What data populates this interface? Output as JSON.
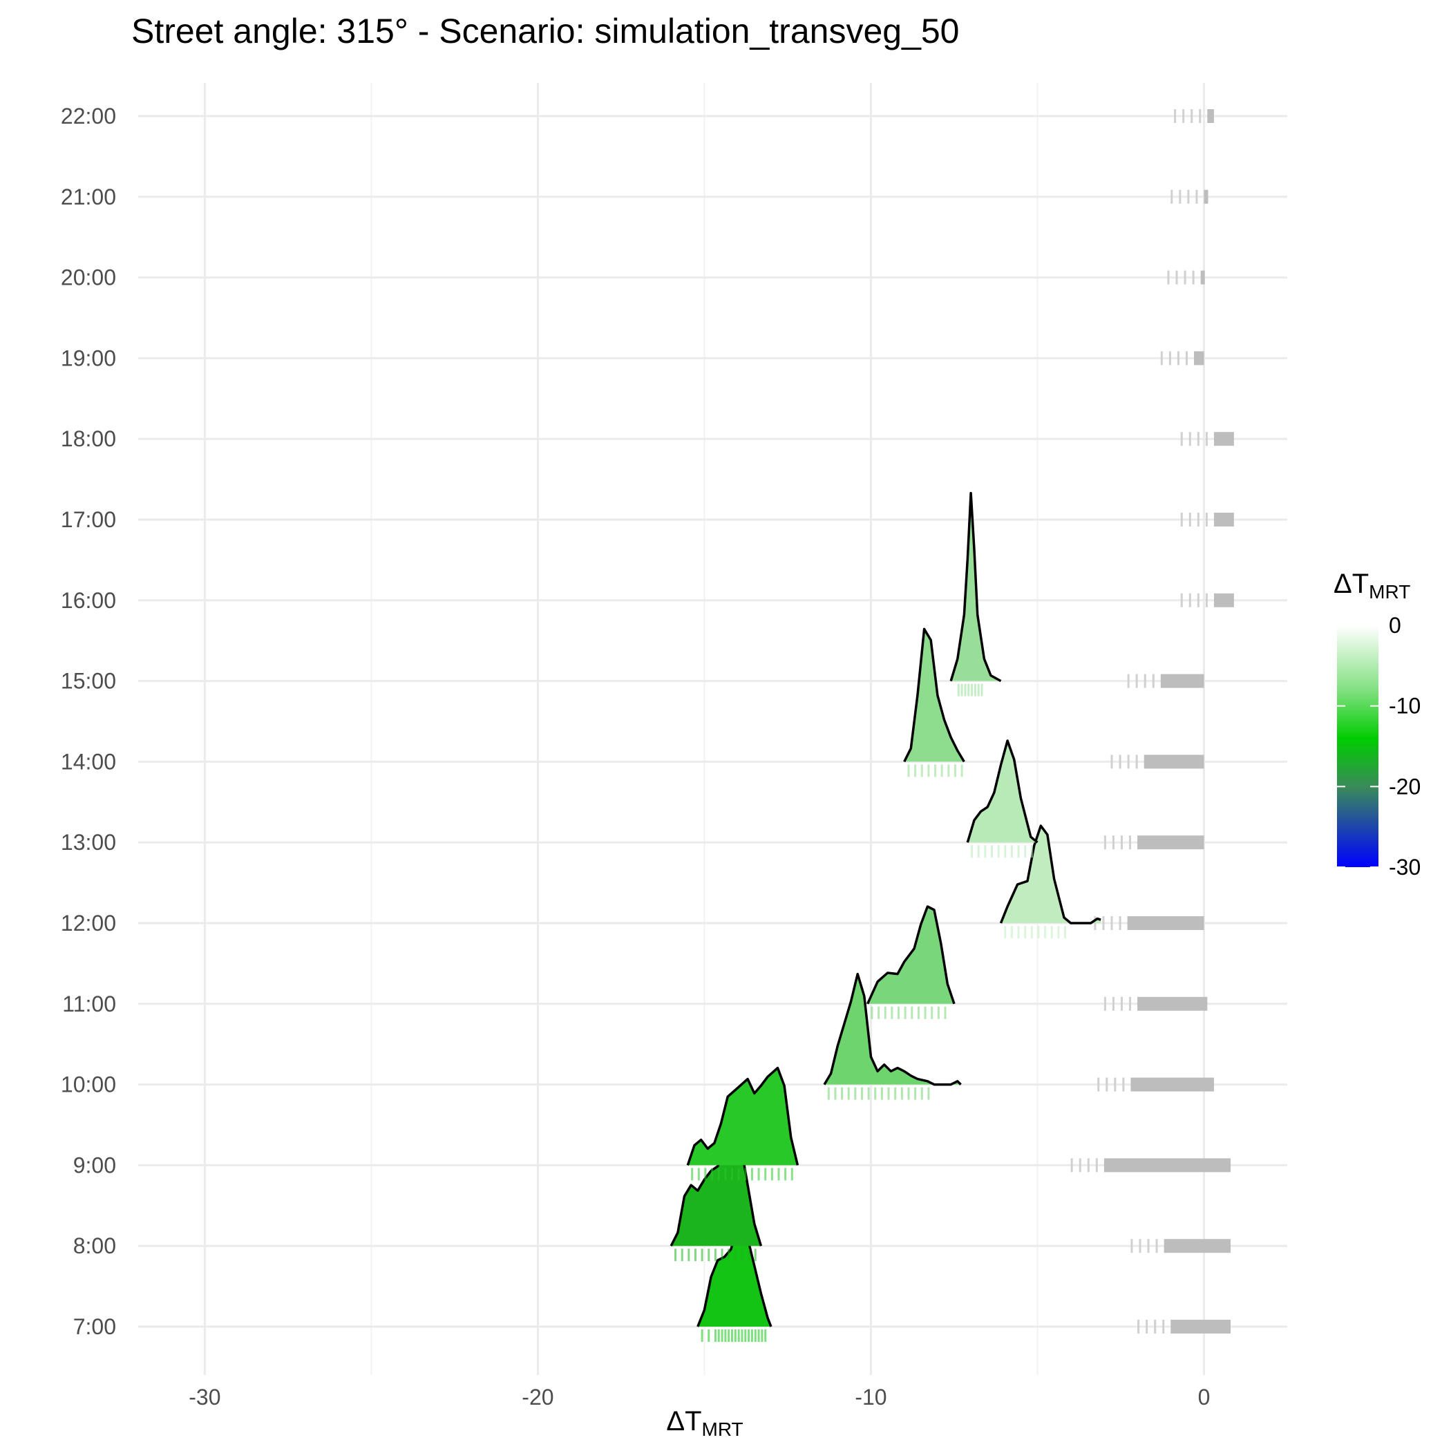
{
  "chart_data": {
    "type": "ridgeline",
    "title": "Street angle: 315° - Scenario: simulation_transveg_50",
    "xlabel": {
      "base": "ΔT",
      "sub": "MRT"
    },
    "ylabel": "",
    "xlim": [
      -32,
      2.5
    ],
    "x_ticks": [
      -30,
      -20,
      -10,
      0
    ],
    "x_tick_labels": [
      "-30",
      "-20",
      "-10",
      "0"
    ],
    "y_categories": [
      "7:00",
      "8:00",
      "9:00",
      "10:00",
      "11:00",
      "12:00",
      "13:00",
      "14:00",
      "15:00",
      "16:00",
      "17:00",
      "18:00",
      "19:00",
      "20:00",
      "21:00",
      "22:00"
    ],
    "grid": true,
    "legend": {
      "title": {
        "base": "ΔT",
        "sub": "MRT"
      },
      "position": "right",
      "breaks": [
        0,
        -10,
        -20,
        -30
      ],
      "labels": [
        "0",
        "-10",
        "-20",
        "-30"
      ],
      "colors": [
        {
          "value": 0,
          "color": "#ffffff"
        },
        {
          "value": -8,
          "color": "#80e080"
        },
        {
          "value": -14,
          "color": "#00cc00"
        },
        {
          "value": -20,
          "color": "#3a8a5a"
        },
        {
          "value": -30,
          "color": "#0000ff"
        }
      ]
    },
    "series": [
      {
        "name": "7:00",
        "hour": "7:00",
        "fill": "#14c414",
        "density": [
          [
            -15.2,
            0
          ],
          [
            -15.0,
            0.15
          ],
          [
            -14.8,
            0.45
          ],
          [
            -14.6,
            0.6
          ],
          [
            -14.4,
            0.63
          ],
          [
            -14.2,
            0.7
          ],
          [
            -14.0,
            0.92
          ],
          [
            -13.9,
            1.0
          ],
          [
            -13.7,
            0.8
          ],
          [
            -13.5,
            0.55
          ],
          [
            -13.3,
            0.3
          ],
          [
            -13.1,
            0.08
          ],
          [
            -13.0,
            0
          ]
        ],
        "rug": [
          -15.1,
          -14.9,
          -14.7,
          -14.6,
          -14.5,
          -14.4,
          -14.3,
          -14.2,
          -14.1,
          -14.0,
          -13.9,
          -13.8,
          -13.7,
          -13.6,
          -13.5,
          -13.4,
          -13.3,
          -13.2
        ],
        "gray_rug": [
          -1.0,
          0.8
        ]
      },
      {
        "name": "8:00",
        "hour": "8:00",
        "fill": "#1cb41c",
        "density": [
          [
            -16.0,
            0
          ],
          [
            -15.8,
            0.12
          ],
          [
            -15.6,
            0.45
          ],
          [
            -15.4,
            0.55
          ],
          [
            -15.2,
            0.5
          ],
          [
            -15.0,
            0.6
          ],
          [
            -14.8,
            0.68
          ],
          [
            -14.6,
            0.72
          ],
          [
            -14.4,
            0.85
          ],
          [
            -14.2,
            0.9
          ],
          [
            -14.0,
            1.0
          ],
          [
            -13.9,
            0.9
          ],
          [
            -13.7,
            0.55
          ],
          [
            -13.5,
            0.2
          ],
          [
            -13.3,
            0
          ]
        ],
        "rug": [
          -15.9,
          -15.7,
          -15.5,
          -15.3,
          -15.1,
          -14.9,
          -14.7,
          -14.5,
          -14.3,
          -14.1,
          -13.9,
          -13.7,
          -13.5
        ],
        "gray_rug": [
          -1.2,
          0.8
        ]
      },
      {
        "name": "9:00",
        "hour": "9:00",
        "fill": "#28c828",
        "density": [
          [
            -15.5,
            0
          ],
          [
            -15.3,
            0.18
          ],
          [
            -15.1,
            0.23
          ],
          [
            -14.9,
            0.15
          ],
          [
            -14.7,
            0.2
          ],
          [
            -14.5,
            0.38
          ],
          [
            -14.3,
            0.62
          ],
          [
            -14.0,
            0.7
          ],
          [
            -13.7,
            0.78
          ],
          [
            -13.5,
            0.65
          ],
          [
            -13.3,
            0.72
          ],
          [
            -13.1,
            0.8
          ],
          [
            -12.8,
            0.88
          ],
          [
            -12.6,
            0.72
          ],
          [
            -12.4,
            0.25
          ],
          [
            -12.2,
            0
          ]
        ],
        "rug": [
          -15.4,
          -15.2,
          -15.0,
          -14.8,
          -14.6,
          -14.4,
          -14.2,
          -14.0,
          -13.8,
          -13.6,
          -13.4,
          -13.2,
          -13.0,
          -12.8,
          -12.6,
          -12.4
        ],
        "gray_rug": [
          -3.0,
          0.8
        ]
      },
      {
        "name": "10:00",
        "hour": "10:00",
        "fill": "#6ed46e",
        "density": [
          [
            -11.4,
            0
          ],
          [
            -11.2,
            0.1
          ],
          [
            -11.0,
            0.35
          ],
          [
            -10.8,
            0.55
          ],
          [
            -10.6,
            0.75
          ],
          [
            -10.4,
            1.0
          ],
          [
            -10.2,
            0.8
          ],
          [
            -10.0,
            0.25
          ],
          [
            -9.8,
            0.12
          ],
          [
            -9.6,
            0.18
          ],
          [
            -9.4,
            0.12
          ],
          [
            -9.2,
            0.15
          ],
          [
            -9.0,
            0.12
          ],
          [
            -8.8,
            0.08
          ],
          [
            -8.6,
            0.05
          ],
          [
            -8.3,
            0.03
          ],
          [
            -8.1,
            0
          ],
          [
            -7.6,
            0.0
          ],
          [
            -7.4,
            0.03
          ],
          [
            -7.3,
            0
          ]
        ],
        "rug": [
          -11.3,
          -11.1,
          -10.9,
          -10.7,
          -10.5,
          -10.3,
          -10.1,
          -9.9,
          -9.7,
          -9.5,
          -9.3,
          -9.1,
          -8.9,
          -8.7,
          -8.5,
          -8.3
        ],
        "gray_rug": [
          -2.2,
          0.3
        ]
      },
      {
        "name": "11:00",
        "hour": "11:00",
        "fill": "#7ad67a",
        "density": [
          [
            -10.1,
            0
          ],
          [
            -9.8,
            0.2
          ],
          [
            -9.5,
            0.28
          ],
          [
            -9.2,
            0.27
          ],
          [
            -9.0,
            0.38
          ],
          [
            -8.7,
            0.5
          ],
          [
            -8.5,
            0.72
          ],
          [
            -8.3,
            0.88
          ],
          [
            -8.1,
            0.85
          ],
          [
            -7.9,
            0.55
          ],
          [
            -7.7,
            0.18
          ],
          [
            -7.5,
            0
          ]
        ],
        "rug": [
          -10.0,
          -9.8,
          -9.6,
          -9.4,
          -9.2,
          -9.0,
          -8.8,
          -8.6,
          -8.4,
          -8.2,
          -8.0,
          -7.8
        ],
        "gray_rug": [
          -2.0,
          0.1
        ]
      },
      {
        "name": "12:00",
        "hour": "12:00",
        "fill": "#c0ecc0",
        "density": [
          [
            -6.1,
            0
          ],
          [
            -5.9,
            0.15
          ],
          [
            -5.6,
            0.35
          ],
          [
            -5.3,
            0.38
          ],
          [
            -5.1,
            0.7
          ],
          [
            -4.9,
            0.88
          ],
          [
            -4.7,
            0.8
          ],
          [
            -4.5,
            0.4
          ],
          [
            -4.2,
            0.05
          ],
          [
            -4.0,
            0
          ],
          [
            -3.4,
            0.0
          ],
          [
            -3.2,
            0.04
          ],
          [
            -3.1,
            0.03
          ]
        ],
        "rug": [
          -6.0,
          -5.8,
          -5.6,
          -5.4,
          -5.2,
          -5.0,
          -4.8,
          -4.6,
          -4.4,
          -4.2
        ],
        "gray_rug": [
          -2.3,
          0.0
        ]
      },
      {
        "name": "13:00",
        "hour": "13:00",
        "fill": "#b8eab8",
        "density": [
          [
            -7.1,
            0
          ],
          [
            -6.9,
            0.2
          ],
          [
            -6.7,
            0.28
          ],
          [
            -6.5,
            0.32
          ],
          [
            -6.3,
            0.45
          ],
          [
            -6.1,
            0.7
          ],
          [
            -5.9,
            0.92
          ],
          [
            -5.7,
            0.75
          ],
          [
            -5.5,
            0.4
          ],
          [
            -5.2,
            0.05
          ],
          [
            -5.0,
            0
          ]
        ],
        "rug": [
          -7.0,
          -6.8,
          -6.6,
          -6.4,
          -6.2,
          -6.0,
          -5.8,
          -5.6,
          -5.4,
          -5.2
        ],
        "gray_rug": [
          -2.0,
          0.0
        ]
      },
      {
        "name": "14:00",
        "hour": "14:00",
        "fill": "#8edc8e",
        "density": [
          [
            -9.0,
            0
          ],
          [
            -8.8,
            0.12
          ],
          [
            -8.6,
            0.6
          ],
          [
            -8.4,
            1.2
          ],
          [
            -8.2,
            1.1
          ],
          [
            -8.0,
            0.6
          ],
          [
            -7.8,
            0.38
          ],
          [
            -7.6,
            0.22
          ],
          [
            -7.4,
            0.1
          ],
          [
            -7.2,
            0
          ]
        ],
        "rug": [
          -8.9,
          -8.7,
          -8.5,
          -8.3,
          -8.1,
          -7.9,
          -7.7,
          -7.5,
          -7.3
        ],
        "gray_rug": [
          -1.8,
          0.0
        ]
      },
      {
        "name": "15:00",
        "hour": "15:00",
        "fill": "#98de98",
        "density": [
          [
            -7.6,
            0
          ],
          [
            -7.4,
            0.2
          ],
          [
            -7.2,
            0.6
          ],
          [
            -7.1,
            1.1
          ],
          [
            -7.0,
            1.7
          ],
          [
            -6.9,
            1.2
          ],
          [
            -6.8,
            0.6
          ],
          [
            -6.6,
            0.2
          ],
          [
            -6.4,
            0.05
          ],
          [
            -6.1,
            0
          ]
        ],
        "rug": [
          -7.4,
          -7.3,
          -7.2,
          -7.1,
          -7.0,
          -6.9,
          -6.8,
          -6.7
        ],
        "gray_rug": [
          -1.3,
          0.0
        ]
      },
      {
        "name": "16:00",
        "hour": "16:00",
        "fill": "#c0c0c0",
        "density": [],
        "rug": [],
        "gray_rug": [
          0.3,
          0.9
        ]
      },
      {
        "name": "17:00",
        "hour": "17:00",
        "fill": "#c0c0c0",
        "density": [],
        "rug": [],
        "gray_rug": [
          0.3,
          0.9
        ]
      },
      {
        "name": "18:00",
        "hour": "18:00",
        "fill": "#c0c0c0",
        "density": [],
        "rug": [],
        "gray_rug": [
          0.3,
          0.9
        ]
      },
      {
        "name": "19:00",
        "hour": "19:00",
        "fill": "#c0c0c0",
        "density": [],
        "rug": [],
        "gray_rug": [
          -0.3,
          0.0
        ]
      },
      {
        "name": "20:00",
        "hour": "20:00",
        "fill": "#c0c0c0",
        "density": [],
        "rug": [],
        "gray_rug": [
          -0.1,
          0.0
        ]
      },
      {
        "name": "21:00",
        "hour": "21:00",
        "fill": "#c0c0c0",
        "density": [],
        "rug": [],
        "gray_rug": [
          0.0,
          0.1
        ]
      },
      {
        "name": "22:00",
        "hour": "22:00",
        "fill": "#c0c0c0",
        "density": [],
        "rug": [],
        "gray_rug": [
          0.1,
          0.3
        ]
      }
    ]
  }
}
